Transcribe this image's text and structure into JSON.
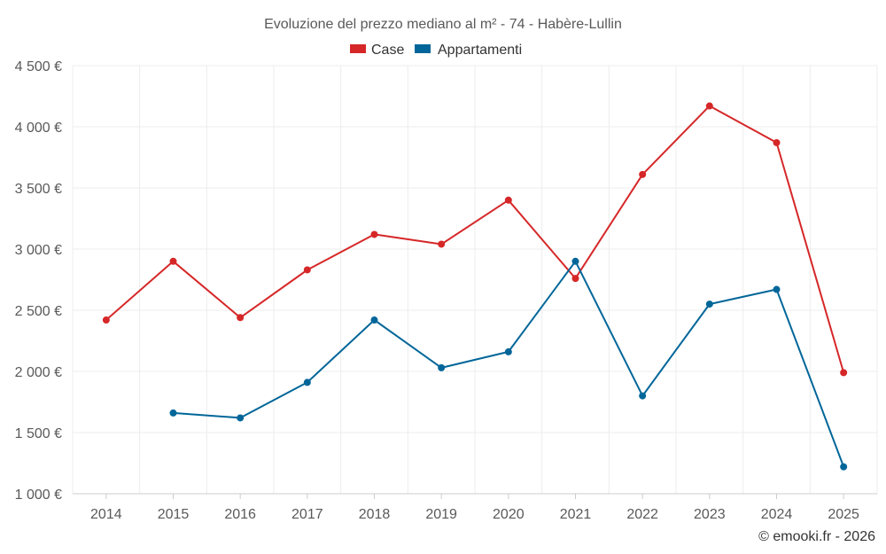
{
  "colors": {
    "case": "#d62728",
    "appartamenti": "#006699"
  },
  "chart_data": {
    "type": "line",
    "title": "Evoluzione del prezzo mediano al m² - 74 - Habère-Lullin",
    "categories": [
      "2014",
      "2015",
      "2016",
      "2017",
      "2018",
      "2019",
      "2020",
      "2021",
      "2022",
      "2023",
      "2024",
      "2025"
    ],
    "series": [
      {
        "name": "Case",
        "values": [
          2420,
          2900,
          2440,
          2830,
          3120,
          3040,
          3400,
          2760,
          3610,
          4170,
          3870,
          1990
        ]
      },
      {
        "name": "Appartamenti",
        "values": [
          null,
          1660,
          1620,
          1910,
          2420,
          2030,
          2160,
          2900,
          1800,
          2550,
          2670,
          1220
        ]
      }
    ],
    "ylim": [
      1000,
      4500
    ],
    "yticks": [
      1000,
      1500,
      2000,
      2500,
      3000,
      3500,
      4000,
      4500
    ],
    "ytick_labels": [
      "1 000 €",
      "1 500 €",
      "2 000 €",
      "2 500 €",
      "3 000 €",
      "3 500 €",
      "4 000 €",
      "4 500 €"
    ],
    "xlabel": "",
    "ylabel": "",
    "grid": true,
    "legend": "top-center"
  },
  "credit": "© emooki.fr - 2026"
}
